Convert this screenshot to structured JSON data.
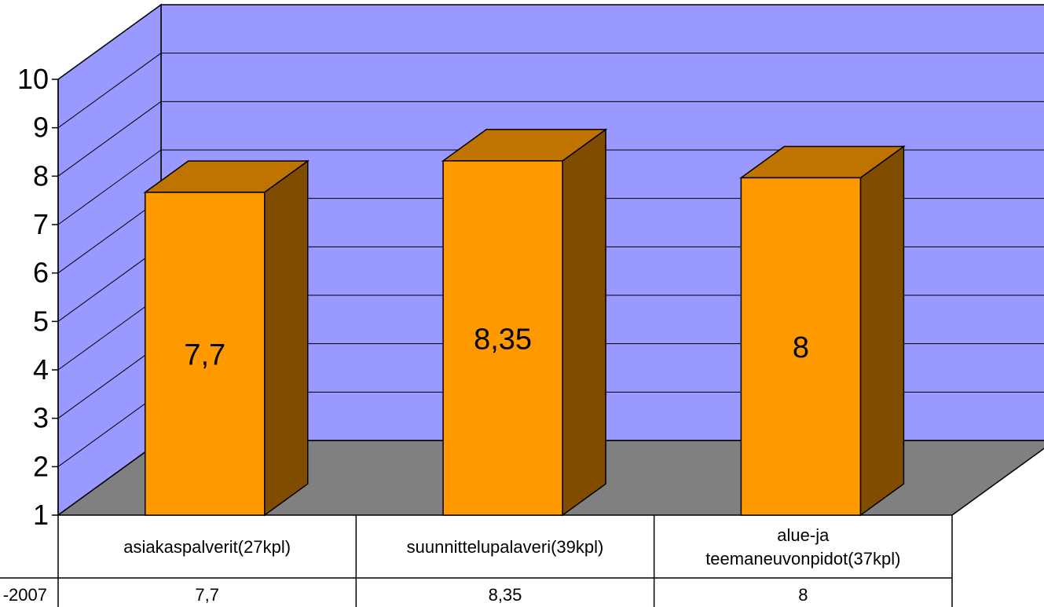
{
  "chart_data": {
    "type": "bar",
    "categories": [
      "asiakaspalverit(27kpl)",
      "suunnittelupalaveri(39kpl)",
      "alue-ja teemaneuvonpidot(37kpl)"
    ],
    "category_lines": [
      [
        "asiakaspalverit(27kpl)"
      ],
      [
        "suunnittelupalaveri(39kpl)"
      ],
      [
        "alue-ja",
        "teemaneuvonpidot(37kpl)"
      ]
    ],
    "series": [
      {
        "name": "-2007",
        "values": [
          7.7,
          8.35,
          8
        ]
      }
    ],
    "value_labels": [
      "7,7",
      "8,35",
      "8"
    ],
    "y_ticks": [
      "1",
      "2",
      "3",
      "4",
      "5",
      "6",
      "7",
      "8",
      "9",
      "10"
    ],
    "ylim": [
      1,
      10
    ],
    "grid": true,
    "data_table": true,
    "colors": {
      "wall": "#9999ff",
      "floor": "#808080",
      "bar_front": "#ff9900",
      "bar_top": "#bf7300",
      "bar_side": "#7f4c00"
    }
  }
}
